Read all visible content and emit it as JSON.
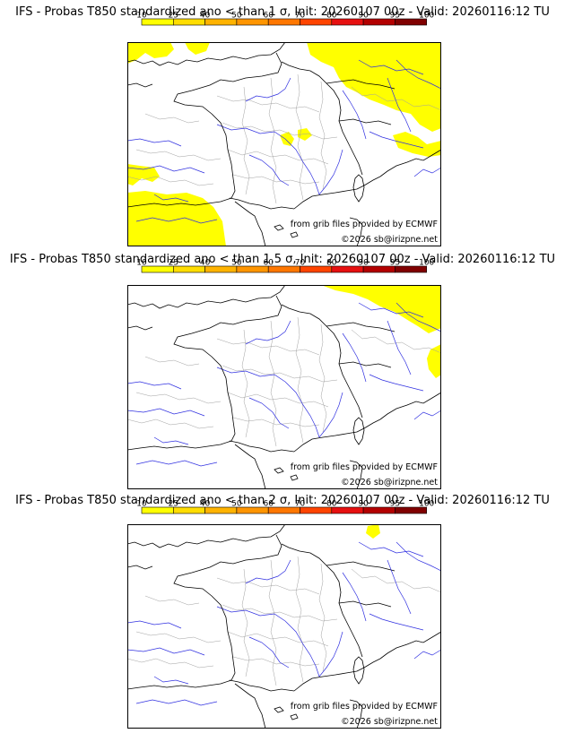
{
  "colorbar": {
    "ticks": [
      "10",
      "25",
      "40",
      "50",
      "60",
      "70",
      "80",
      "90",
      "95",
      "100"
    ],
    "colors": [
      "#ffff00",
      "#ffdd00",
      "#ffb300",
      "#ff9500",
      "#ff7700",
      "#ff4400",
      "#e61010",
      "#b30000",
      "#800000"
    ]
  },
  "credits": {
    "source": "from grib files provided by ECMWF",
    "copyright": "©2026 sb@irizpne.net"
  },
  "colors": {
    "probability_low": "#ffff00",
    "rivers": "#3030e0",
    "borders": "#a0a0a0",
    "coast": "#000000"
  },
  "panels": [
    {
      "title": "IFS - Probas T850  standardized ano < than 1 σ, Init: 20260107 00z - Valid: 20260116:12 TU"
    },
    {
      "title": "IFS - Probas T850  standardized ano < than 1.5 σ, Init: 20260107 00z - Valid: 20260116:12 TU"
    },
    {
      "title": "IFS - Probas T850  standardized ano < than 2 σ, Init: 20260107 00z - Valid: 20260116:12 TU"
    }
  ]
}
